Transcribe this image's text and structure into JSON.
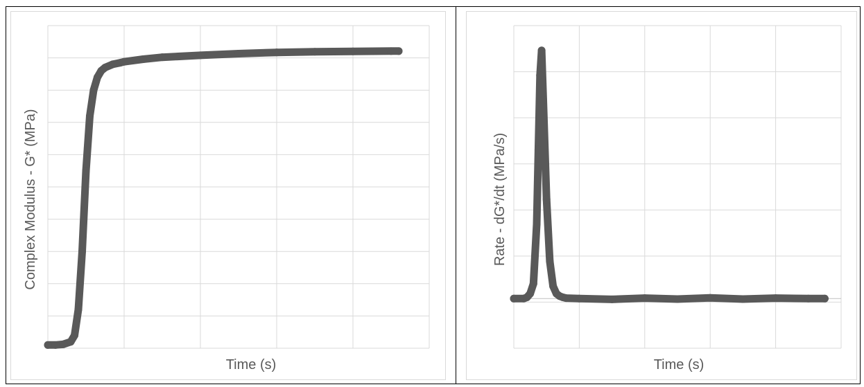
{
  "chart_data": [
    {
      "type": "line",
      "title": "",
      "xlabel": "Time (s)",
      "ylabel": "Complex Modulus - G* (MPa)",
      "x_range": [
        0,
        100
      ],
      "y_range": [
        0,
        100
      ],
      "grid": true,
      "legend": "none",
      "tick_labels_shown": false,
      "series_color": "#595959",
      "series": [
        {
          "x": [
            0,
            2,
            4,
            6,
            7,
            8,
            9,
            10,
            11,
            12,
            13,
            14,
            15,
            17,
            19,
            20,
            25,
            30,
            40,
            50,
            60,
            70,
            80,
            90,
            92
          ],
          "y": [
            1,
            1,
            1.2,
            2,
            4,
            12,
            30,
            55,
            72,
            80,
            84,
            86,
            87,
            88,
            88.5,
            88.8,
            89.6,
            90.2,
            90.8,
            91.3,
            91.7,
            91.9,
            92,
            92.1,
            92.1
          ]
        }
      ]
    },
    {
      "type": "line",
      "title": "",
      "xlabel": "Time (s)",
      "ylabel": "Rate - dG*/dt (MPa/s)",
      "x_range": [
        0,
        100
      ],
      "y_range": [
        -20,
        110
      ],
      "grid": true,
      "legend": "none",
      "tick_labels_shown": false,
      "series_color": "#595959",
      "series": [
        {
          "x": [
            0,
            3,
            4,
            5,
            6,
            7,
            7.5,
            8,
            8.5,
            9,
            10,
            11,
            12,
            13,
            14,
            15,
            16,
            20,
            30,
            40,
            50,
            60,
            70,
            80,
            90,
            95
          ],
          "y": [
            0,
            0,
            0.5,
            2,
            6,
            30,
            60,
            90,
            100,
            80,
            40,
            15,
            5,
            2,
            1,
            0.5,
            0.2,
            0,
            -0.3,
            0.2,
            -0.2,
            0.3,
            -0.2,
            0.2,
            0,
            0
          ]
        }
      ]
    }
  ]
}
